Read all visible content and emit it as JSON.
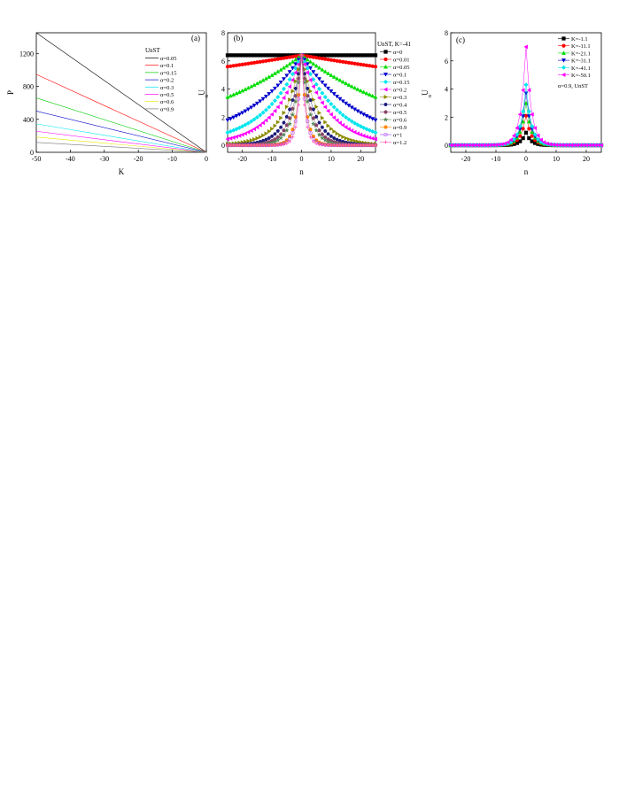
{
  "chart_data": [
    {
      "panel_label": "(a)",
      "type": "line",
      "xlabel": "K",
      "ylabel": "P",
      "xlim": [
        -50,
        0
      ],
      "ylim": [
        0,
        1450
      ],
      "xticks": [
        -50,
        -40,
        -30,
        -20,
        -10,
        0
      ],
      "yticks": [
        0,
        400,
        800,
        1200
      ],
      "legend_title": "UnST",
      "legend_position": "top-right",
      "grid": false,
      "series": [
        {
          "name": "α=0.05",
          "color": "#000000",
          "x": [
            -50,
            0
          ],
          "y": [
            1450,
            0
          ]
        },
        {
          "name": "α=0.1",
          "color": "#ff0000",
          "x": [
            -50,
            0
          ],
          "y": [
            945,
            0
          ]
        },
        {
          "name": "α=0.15",
          "color": "#00cc00",
          "x": [
            -50,
            0
          ],
          "y": [
            660,
            0
          ]
        },
        {
          "name": "α=0.2",
          "color": "#0000cc",
          "x": [
            -50,
            0
          ],
          "y": [
            500,
            0
          ]
        },
        {
          "name": "α=0.3",
          "color": "#00e5ee",
          "x": [
            -50,
            0
          ],
          "y": [
            345,
            0
          ]
        },
        {
          "name": "α=0.5",
          "color": "#ff00ff",
          "x": [
            -50,
            0
          ],
          "y": [
            255,
            0
          ]
        },
        {
          "name": "α=0.6",
          "color": "#e8e800",
          "x": [
            -50,
            0
          ],
          "y": [
            185,
            0
          ]
        },
        {
          "name": "α=0.9",
          "color": "#777777",
          "x": [
            -50,
            0
          ],
          "y": [
            120,
            0
          ]
        }
      ]
    },
    {
      "panel_label": "(b)",
      "type": "scatter",
      "xlabel": "n",
      "ylabel": "U",
      "ylabel_sub": "n",
      "xlim": [
        -25,
        25
      ],
      "ylim": [
        -0.5,
        8
      ],
      "xticks": [
        -20,
        -10,
        0,
        10,
        20
      ],
      "yticks": [
        0,
        2,
        4,
        6,
        8
      ],
      "legend_title": "UnST, K=-41",
      "legend_position": "right",
      "grid": false,
      "n_range": [
        -25,
        25
      ],
      "peak": 6.4,
      "series": [
        {
          "name": "α=0",
          "color": "#000000",
          "marker": "square",
          "decay": 0,
          "filled": true
        },
        {
          "name": "α=0.01",
          "color": "#ff0000",
          "marker": "circle",
          "decay": 0.0054,
          "filled": true
        },
        {
          "name": "α=0.05",
          "color": "#00dd00",
          "marker": "triangle",
          "decay": 0.025,
          "filled": true
        },
        {
          "name": "α=0.1",
          "color": "#0000cc",
          "marker": "tri-down",
          "decay": 0.051,
          "filled": true
        },
        {
          "name": "α=0.15",
          "color": "#00e5ee",
          "marker": "diamond",
          "decay": 0.078,
          "filled": true
        },
        {
          "name": "α=0.2",
          "color": "#ff00ff",
          "marker": "tri-left",
          "decay": 0.107,
          "filled": true
        },
        {
          "name": "α=0.3",
          "color": "#8b8b00",
          "marker": "tri-right",
          "decay": 0.17,
          "filled": true
        },
        {
          "name": "α=0.4",
          "color": "#1a1a7a",
          "marker": "hexagon",
          "decay": 0.23,
          "filled": true
        },
        {
          "name": "α=0.5",
          "color": "#884466",
          "marker": "pentagon",
          "decay": 0.3,
          "filled": true
        },
        {
          "name": "α=0.6",
          "color": "#558855",
          "marker": "star",
          "decay": 0.36,
          "filled": true
        },
        {
          "name": "α=0.9",
          "color": "#ff8800",
          "marker": "circle",
          "decay": 0.58,
          "filled": true
        },
        {
          "name": "α=1",
          "color": "#9933ff",
          "marker": "circle",
          "decay": 0.66,
          "filled": false
        },
        {
          "name": "α=1.2",
          "color": "#ff55bb",
          "marker": "plus",
          "decay": 0.8,
          "filled": true
        }
      ]
    },
    {
      "panel_label": "(c)",
      "type": "scatter",
      "xlabel": "n",
      "ylabel": "U",
      "ylabel_sub": "n",
      "xlim": [
        -25,
        25
      ],
      "ylim": [
        -0.5,
        8
      ],
      "xticks": [
        -20,
        -10,
        0,
        10,
        20
      ],
      "yticks": [
        0,
        2,
        4,
        6,
        8
      ],
      "legend_position": "top-right",
      "legend_note": "α=0.9, UnST",
      "grid": false,
      "n_range": [
        -25,
        25
      ],
      "decay": 0.58,
      "series": [
        {
          "name": "K=-1.1",
          "color": "#000000",
          "marker": "square",
          "peak": 0.9
        },
        {
          "name": "K=-11.1",
          "color": "#ff0000",
          "marker": "circle",
          "peak": 2.1
        },
        {
          "name": "K=-21.1",
          "color": "#00dd00",
          "marker": "triangle",
          "peak": 3.0
        },
        {
          "name": "K=-31.1",
          "color": "#0000cc",
          "marker": "tri-down",
          "peak": 3.7
        },
        {
          "name": "K=-41.1",
          "color": "#00e5ee",
          "marker": "diamond",
          "peak": 4.3
        },
        {
          "name": "K=-50.1",
          "color": "#ff00ff",
          "marker": "tri-left",
          "peak": 7.0
        }
      ]
    }
  ]
}
